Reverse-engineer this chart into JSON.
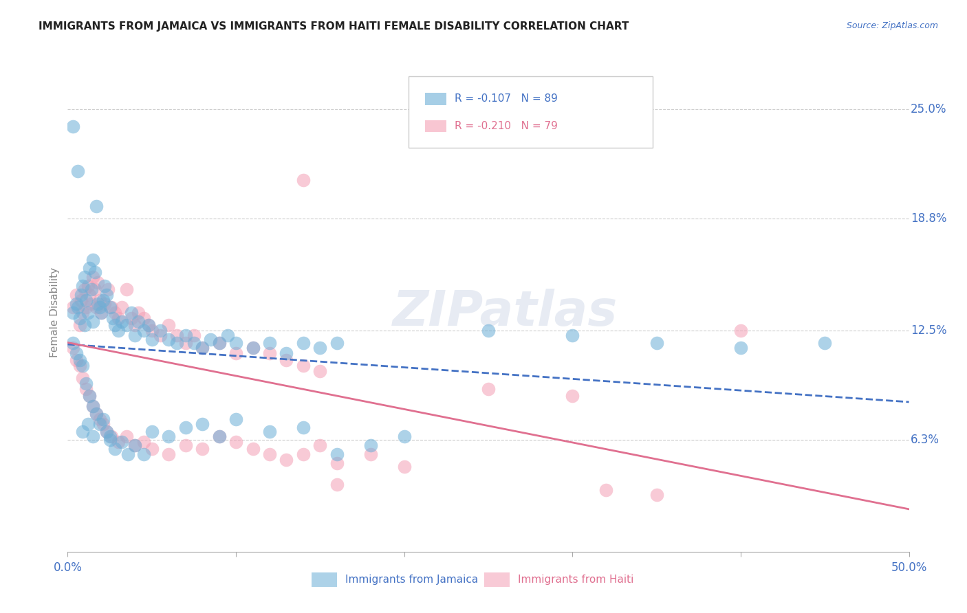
{
  "title": "IMMIGRANTS FROM JAMAICA VS IMMIGRANTS FROM HAITI FEMALE DISABILITY CORRELATION CHART",
  "source": "Source: ZipAtlas.com",
  "ylabel": "Female Disability",
  "right_yticks": [
    "25.0%",
    "18.8%",
    "12.5%",
    "6.3%"
  ],
  "right_ytick_vals": [
    0.25,
    0.188,
    0.125,
    0.063
  ],
  "xlim": [
    0.0,
    0.5
  ],
  "ylim": [
    0.0,
    0.27
  ],
  "watermark": "ZIPatlas",
  "legend_label1": "R = -0.107   N = 89",
  "legend_label2": "R = -0.210   N = 79",
  "bottom_label1": "Immigrants from Jamaica",
  "bottom_label2": "Immigrants from Haiti",
  "jamaica_color": "#6baed6",
  "haiti_color": "#f4a0b5",
  "trend_jamaica_color": "#4472c4",
  "trend_haiti_color": "#e07090",
  "background_color": "#ffffff",
  "grid_color": "#cccccc",
  "title_color": "#222222",
  "tick_label_color": "#4472c4",
  "source_color": "#4472c4",
  "axis_label_color": "#888888",
  "jamaica_x": [
    0.003,
    0.005,
    0.006,
    0.007,
    0.008,
    0.009,
    0.01,
    0.01,
    0.011,
    0.012,
    0.013,
    0.014,
    0.015,
    0.015,
    0.016,
    0.017,
    0.018,
    0.019,
    0.02,
    0.021,
    0.022,
    0.023,
    0.025,
    0.027,
    0.028,
    0.03,
    0.032,
    0.035,
    0.038,
    0.04,
    0.042,
    0.045,
    0.048,
    0.05,
    0.055,
    0.06,
    0.065,
    0.07,
    0.075,
    0.08,
    0.085,
    0.09,
    0.095,
    0.1,
    0.11,
    0.12,
    0.13,
    0.14,
    0.15,
    0.16,
    0.003,
    0.005,
    0.007,
    0.009,
    0.011,
    0.013,
    0.015,
    0.017,
    0.019,
    0.021,
    0.023,
    0.025,
    0.028,
    0.032,
    0.036,
    0.04,
    0.045,
    0.05,
    0.06,
    0.07,
    0.08,
    0.09,
    0.1,
    0.12,
    0.14,
    0.16,
    0.18,
    0.2,
    0.25,
    0.3,
    0.35,
    0.4,
    0.45,
    0.003,
    0.006,
    0.009,
    0.012,
    0.015,
    0.025
  ],
  "jamaica_y": [
    0.135,
    0.14,
    0.138,
    0.132,
    0.145,
    0.15,
    0.128,
    0.155,
    0.142,
    0.135,
    0.16,
    0.148,
    0.165,
    0.13,
    0.158,
    0.195,
    0.14,
    0.138,
    0.135,
    0.142,
    0.15,
    0.145,
    0.138,
    0.132,
    0.128,
    0.125,
    0.13,
    0.128,
    0.135,
    0.122,
    0.13,
    0.125,
    0.128,
    0.12,
    0.125,
    0.12,
    0.118,
    0.122,
    0.118,
    0.115,
    0.12,
    0.118,
    0.122,
    0.118,
    0.115,
    0.118,
    0.112,
    0.118,
    0.115,
    0.118,
    0.118,
    0.112,
    0.108,
    0.105,
    0.095,
    0.088,
    0.082,
    0.078,
    0.072,
    0.075,
    0.068,
    0.065,
    0.058,
    0.062,
    0.055,
    0.06,
    0.055,
    0.068,
    0.065,
    0.07,
    0.072,
    0.065,
    0.075,
    0.068,
    0.07,
    0.055,
    0.06,
    0.065,
    0.125,
    0.122,
    0.118,
    0.115,
    0.118,
    0.24,
    0.215,
    0.068,
    0.072,
    0.065,
    0.063
  ],
  "haiti_x": [
    0.003,
    0.005,
    0.007,
    0.008,
    0.009,
    0.01,
    0.011,
    0.012,
    0.013,
    0.014,
    0.015,
    0.016,
    0.017,
    0.018,
    0.019,
    0.02,
    0.022,
    0.024,
    0.026,
    0.028,
    0.03,
    0.032,
    0.035,
    0.038,
    0.04,
    0.042,
    0.045,
    0.048,
    0.05,
    0.055,
    0.06,
    0.065,
    0.07,
    0.075,
    0.08,
    0.09,
    0.1,
    0.11,
    0.12,
    0.13,
    0.14,
    0.15,
    0.003,
    0.005,
    0.007,
    0.009,
    0.011,
    0.013,
    0.015,
    0.017,
    0.019,
    0.021,
    0.023,
    0.026,
    0.03,
    0.035,
    0.04,
    0.045,
    0.05,
    0.06,
    0.07,
    0.08,
    0.09,
    0.1,
    0.11,
    0.12,
    0.13,
    0.14,
    0.15,
    0.16,
    0.18,
    0.2,
    0.25,
    0.3,
    0.4,
    0.14,
    0.16,
    0.32,
    0.35
  ],
  "haiti_y": [
    0.138,
    0.145,
    0.128,
    0.142,
    0.135,
    0.148,
    0.138,
    0.15,
    0.145,
    0.14,
    0.155,
    0.148,
    0.138,
    0.152,
    0.142,
    0.135,
    0.14,
    0.148,
    0.138,
    0.135,
    0.132,
    0.138,
    0.148,
    0.132,
    0.128,
    0.135,
    0.132,
    0.128,
    0.125,
    0.122,
    0.128,
    0.122,
    0.118,
    0.122,
    0.115,
    0.118,
    0.112,
    0.115,
    0.112,
    0.108,
    0.105,
    0.102,
    0.115,
    0.108,
    0.105,
    0.098,
    0.092,
    0.088,
    0.082,
    0.078,
    0.075,
    0.072,
    0.068,
    0.065,
    0.062,
    0.065,
    0.06,
    0.062,
    0.058,
    0.055,
    0.06,
    0.058,
    0.065,
    0.062,
    0.058,
    0.055,
    0.052,
    0.055,
    0.06,
    0.05,
    0.055,
    0.048,
    0.092,
    0.088,
    0.125,
    0.21,
    0.038,
    0.035,
    0.032
  ]
}
